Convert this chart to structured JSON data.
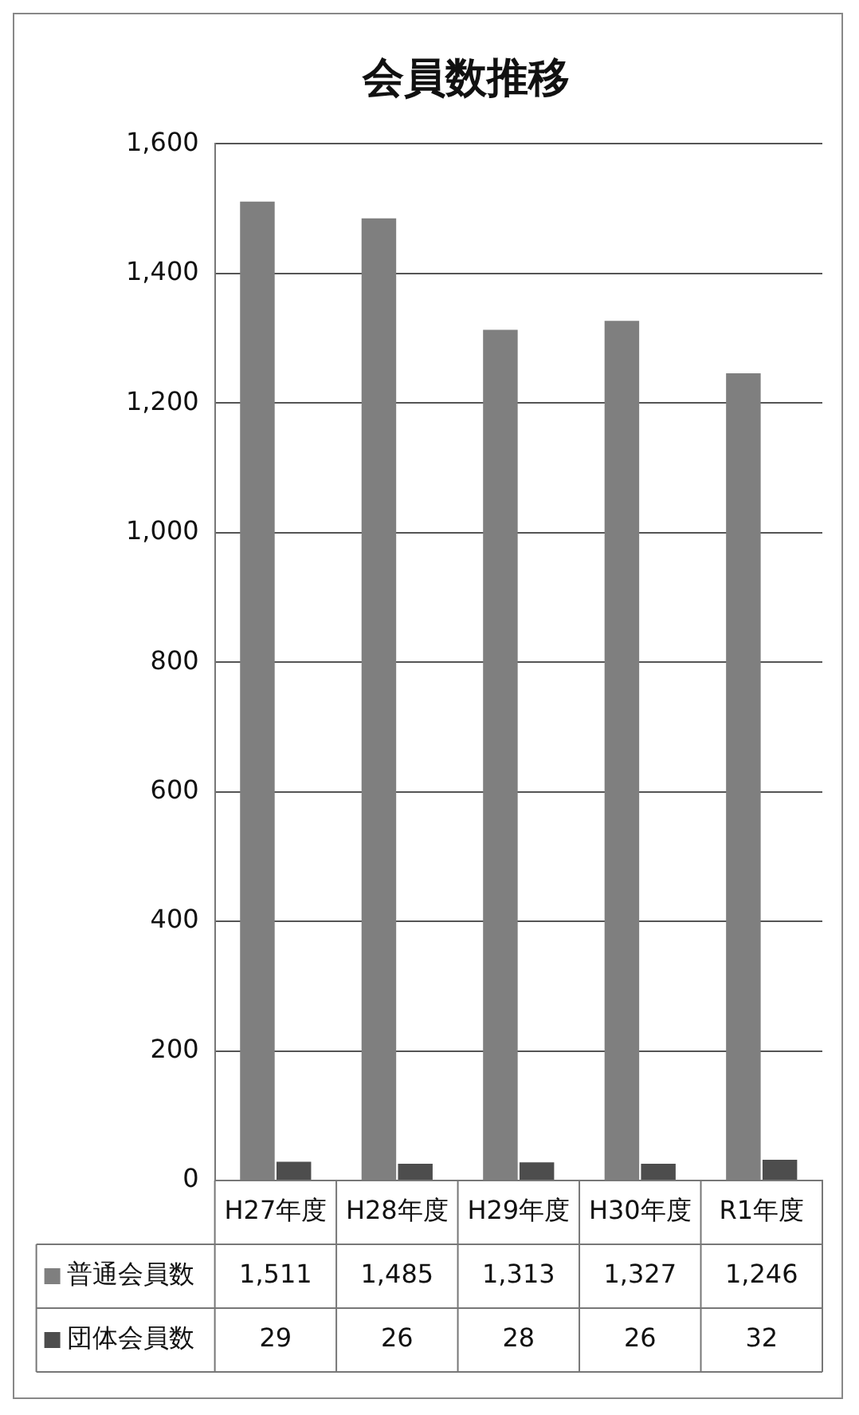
{
  "chart_data": {
    "type": "bar",
    "title": "会員数推移",
    "categories": [
      "H27年度",
      "H28年度",
      "H29年度",
      "H30年度",
      "R1年度"
    ],
    "series": [
      {
        "name": "普通会員数",
        "color": "#7f7f7f",
        "values": [
          1511,
          1485,
          1313,
          1327,
          1246
        ],
        "value_labels": [
          "1,511",
          "1,485",
          "1,313",
          "1,327",
          "1,246"
        ]
      },
      {
        "name": "団体会員数",
        "color": "#4d4d4d",
        "values": [
          29,
          26,
          28,
          26,
          32
        ],
        "value_labels": [
          "29",
          "26",
          "28",
          "26",
          "32"
        ]
      }
    ],
    "ylim": [
      0,
      1600
    ],
    "yticks": [
      0,
      200,
      400,
      600,
      800,
      {
        "value": 1000,
        "label": "1,000"
      },
      {
        "value": 1200,
        "label": "1,200"
      },
      {
        "value": 1400,
        "label": "1,400"
      },
      {
        "value": 1600,
        "label": "1,600"
      }
    ],
    "grid": "y",
    "legend": "bottom left"
  }
}
